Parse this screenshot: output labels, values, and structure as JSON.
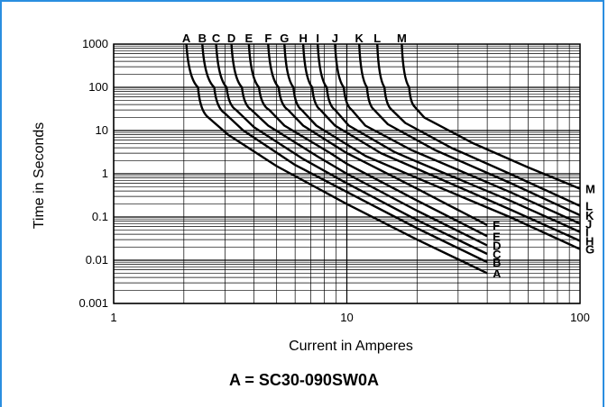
{
  "caption": "A = SC30-090SW0A",
  "chart_data": {
    "type": "line",
    "title": "",
    "xlabel": "Current in Amperes",
    "ylabel": "Time in Seconds",
    "x_scale": "log",
    "y_scale": "log",
    "xlim": [
      1,
      100
    ],
    "ylim": [
      0.001,
      1000
    ],
    "grid": true,
    "xticks": [
      "1",
      "10",
      "100"
    ],
    "yticks": [
      "1000",
      "100",
      "10",
      "1",
      "0.1",
      "0.01",
      "0.001"
    ],
    "series": [
      {
        "name": "A",
        "points": [
          [
            2.05,
            1000
          ],
          [
            2.3,
            100
          ],
          [
            2.55,
            20
          ],
          [
            3.1,
            8
          ],
          [
            5,
            1.5
          ],
          [
            10,
            0.2
          ],
          [
            20,
            0.03
          ],
          [
            40,
            0.005
          ]
        ]
      },
      {
        "name": "B",
        "points": [
          [
            2.4,
            1000
          ],
          [
            2.7,
            100
          ],
          [
            3.0,
            25
          ],
          [
            3.6,
            10
          ],
          [
            6,
            1.6
          ],
          [
            10,
            0.38
          ],
          [
            20,
            0.055
          ],
          [
            40,
            0.009
          ]
        ]
      },
      {
        "name": "C",
        "points": [
          [
            2.75,
            1000
          ],
          [
            3.05,
            100
          ],
          [
            3.35,
            30
          ],
          [
            4,
            12
          ],
          [
            6.5,
            2.2
          ],
          [
            10,
            0.6
          ],
          [
            20,
            0.085
          ],
          [
            40,
            0.014
          ]
        ]
      },
      {
        "name": "D",
        "points": [
          [
            3.2,
            1000
          ],
          [
            3.55,
            100
          ],
          [
            3.9,
            30
          ],
          [
            4.6,
            13
          ],
          [
            7.5,
            2.5
          ],
          [
            10,
            1.0
          ],
          [
            20,
            0.14
          ],
          [
            40,
            0.022
          ]
        ]
      },
      {
        "name": "E",
        "points": [
          [
            3.8,
            1000
          ],
          [
            4.2,
            100
          ],
          [
            4.65,
            30
          ],
          [
            5.4,
            13
          ],
          [
            8.5,
            3
          ],
          [
            10,
            1.7
          ],
          [
            20,
            0.24
          ],
          [
            40,
            0.036
          ]
        ]
      },
      {
        "name": "F",
        "points": [
          [
            4.6,
            1000
          ],
          [
            5.1,
            100
          ],
          [
            5.6,
            30
          ],
          [
            6.5,
            13
          ],
          [
            10,
            3
          ],
          [
            20,
            0.45
          ],
          [
            40,
            0.065
          ]
        ]
      },
      {
        "name": "G",
        "points": [
          [
            5.4,
            1000
          ],
          [
            5.9,
            100
          ],
          [
            6.4,
            30
          ],
          [
            7.4,
            13
          ],
          [
            12,
            2.6
          ],
          [
            20,
            0.8
          ],
          [
            50,
            0.1
          ],
          [
            100,
            0.018
          ]
        ]
      },
      {
        "name": "H",
        "points": [
          [
            6.5,
            1000
          ],
          [
            7.1,
            100
          ],
          [
            7.7,
            30
          ],
          [
            8.9,
            13
          ],
          [
            14,
            3
          ],
          [
            20,
            1.3
          ],
          [
            50,
            0.15
          ],
          [
            100,
            0.028
          ]
        ]
      },
      {
        "name": "I",
        "points": [
          [
            7.5,
            1000
          ],
          [
            8.2,
            100
          ],
          [
            8.9,
            30
          ],
          [
            10.2,
            13
          ],
          [
            16,
            3.2
          ],
          [
            20,
            1.9
          ],
          [
            50,
            0.24
          ],
          [
            100,
            0.045
          ]
        ]
      },
      {
        "name": "J",
        "points": [
          [
            8.9,
            1000
          ],
          [
            9.7,
            100
          ],
          [
            10.5,
            30
          ],
          [
            12,
            13
          ],
          [
            19,
            3.5
          ],
          [
            50,
            0.38
          ],
          [
            100,
            0.07
          ]
        ]
      },
      {
        "name": "K",
        "points": [
          [
            11.3,
            1000
          ],
          [
            12.2,
            100
          ],
          [
            13.1,
            30
          ],
          [
            15,
            14
          ],
          [
            24,
            3.5
          ],
          [
            50,
            0.62
          ],
          [
            100,
            0.11
          ]
        ]
      },
      {
        "name": "L",
        "points": [
          [
            13.5,
            1000
          ],
          [
            14.5,
            100
          ],
          [
            15.6,
            30
          ],
          [
            17.8,
            15
          ],
          [
            28,
            4
          ],
          [
            50,
            1.0
          ],
          [
            100,
            0.18
          ]
        ]
      },
      {
        "name": "M",
        "points": [
          [
            17.2,
            1000
          ],
          [
            18.5,
            100
          ],
          [
            19.6,
            35
          ],
          [
            21.5,
            20
          ],
          [
            35,
            5
          ],
          [
            60,
            1.4
          ],
          [
            100,
            0.45
          ]
        ]
      }
    ]
  }
}
